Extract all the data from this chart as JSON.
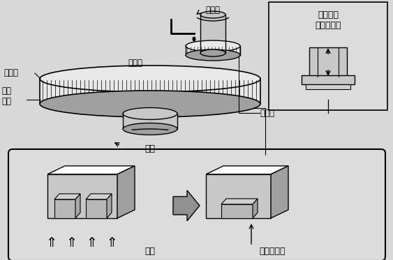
{
  "fig_bg": "#d8d8d8",
  "ax_bg": "#e0e0e0",
  "label_grind_rod": "研磨杆",
  "label_grind_pad": "研磨垫",
  "label_grind_liquid": "研磨液",
  "label_fixed_base": "固定\n底盘",
  "label_rotate": "旋转",
  "label_silicon_wafer": "硅圆片",
  "label_box_title": "硅圆片的\n吸附与加压",
  "label_grind": "研磨",
  "label_surface": "硅圆片表面",
  "light_gray": "#c8c8c8",
  "mid_gray": "#a0a0a0",
  "white": "#ffffff",
  "near_white": "#e8e8e8"
}
